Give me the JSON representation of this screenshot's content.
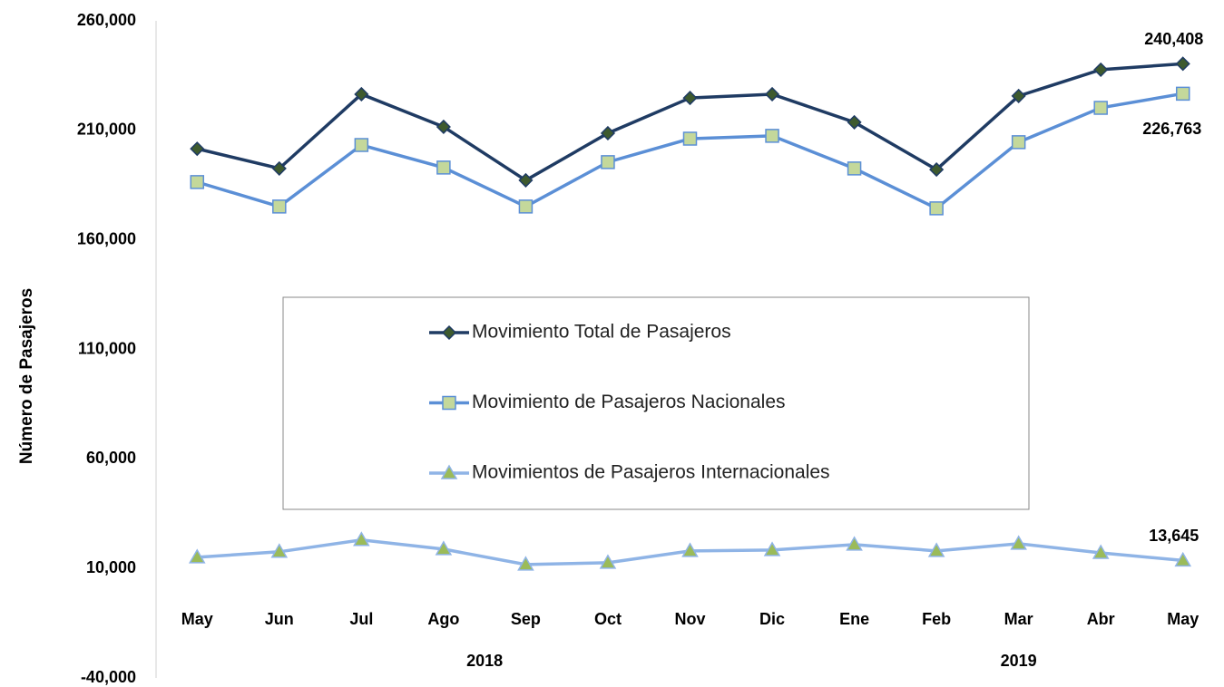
{
  "chart_data": {
    "type": "line",
    "y_label": "Número de Pasajeros",
    "categories": [
      "May",
      "Jun",
      "Jul",
      "Ago",
      "Sep",
      "Oct",
      "Nov",
      "Dic",
      "Ene",
      "Feb",
      "Mar",
      "Abr",
      "May"
    ],
    "x_groups": [
      {
        "label": "2018",
        "from": 0,
        "to": 7
      },
      {
        "label": "2019",
        "from": 8,
        "to": 12
      }
    ],
    "ylim": [
      -40000,
      260000
    ],
    "yticks": [
      {
        "value": -40000,
        "label": "-40,000"
      },
      {
        "value": 10000,
        "label": "10,000"
      },
      {
        "value": 60000,
        "label": "60,000"
      },
      {
        "value": 110000,
        "label": "110,000"
      },
      {
        "value": 160000,
        "label": "160,000"
      },
      {
        "value": 210000,
        "label": "210,000"
      },
      {
        "value": 260000,
        "label": "260,000"
      }
    ],
    "grid": false,
    "series": [
      {
        "name": "Movimiento Total de Pasajeros",
        "color": "#1f3b63",
        "marker": "diamond",
        "marker_color": "#3e5a2e",
        "values": [
          201600,
          192600,
          226500,
          211600,
          187200,
          208700,
          224800,
          226500,
          213700,
          192100,
          225700,
          237700,
          240408
        ],
        "value_labels": [
          null,
          null,
          null,
          null,
          null,
          null,
          null,
          null,
          null,
          null,
          null,
          null,
          "240,408"
        ]
      },
      {
        "name": "Movimiento de Pasajeros Nacionales",
        "color": "#5b8fd6",
        "marker": "square",
        "marker_color": "#c4d89b",
        "values": [
          186400,
          175200,
          203300,
          193000,
          175200,
          195500,
          206200,
          207500,
          192600,
          174400,
          204600,
          220300,
          226763
        ],
        "value_labels": [
          null,
          null,
          null,
          null,
          null,
          null,
          null,
          null,
          null,
          null,
          null,
          null,
          "226,763"
        ]
      },
      {
        "name": "Movimientos de Pasajeros Internacionales",
        "color": "#8fb4e6",
        "marker": "triangle",
        "marker_color": "#9bbb59",
        "values": [
          15100,
          17600,
          23000,
          18800,
          11800,
          12600,
          18000,
          18400,
          20900,
          18000,
          21300,
          17100,
          13645
        ],
        "value_labels": [
          null,
          null,
          null,
          null,
          null,
          null,
          null,
          null,
          null,
          null,
          null,
          null,
          "13,645"
        ]
      }
    ]
  }
}
